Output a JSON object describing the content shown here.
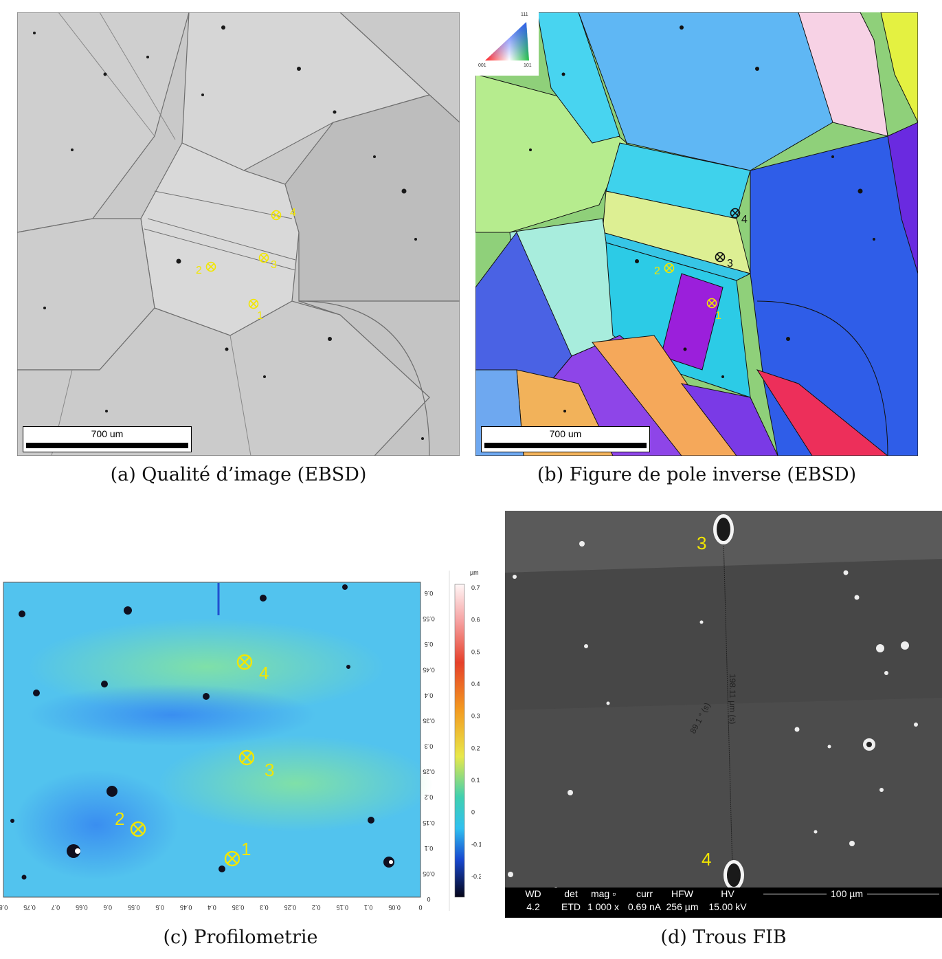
{
  "panels": {
    "a": {
      "caption": "(a) Qualité d’image (EBSD)",
      "scalebar": "700 um",
      "markers": [
        "1",
        "2",
        "3",
        "4"
      ]
    },
    "b": {
      "caption": "(b) Figure de pole inverse (EBSD)",
      "scalebar": "700 um",
      "legend_corners": {
        "top": "111",
        "left": "001",
        "right": "101"
      },
      "markers": [
        "1",
        "2",
        "3",
        "4"
      ]
    },
    "c": {
      "caption": "(c) Profilometrie",
      "colorbar_unit": "µm",
      "colorbar_ticks": [
        "0.7",
        "0.6",
        "0.5",
        "0.4",
        "0.3",
        "0.2",
        "0.1",
        "0",
        "-0.1",
        "-0.2"
      ],
      "right_axis_ticks": [
        "0.6",
        "0.55",
        "0.5",
        "0.45",
        "0.4",
        "0.35",
        "0.3",
        "0.25",
        "0.2",
        "0.15",
        "0.1",
        "0.05",
        "0"
      ],
      "bottom_axis_ticks": [
        "0.8",
        "0.75",
        "0.7",
        "0.65",
        "0.6",
        "0.55",
        "0.5",
        "0.45",
        "0.4",
        "0.35",
        "0.3",
        "0.25",
        "0.2",
        "0.15",
        "0.1",
        "0.05",
        "0"
      ],
      "markers": [
        "1",
        "2",
        "3",
        "4"
      ]
    },
    "d": {
      "caption": "(d) Trous FIB",
      "markers": [
        "3",
        "4"
      ],
      "measure_length": "198.11 µm (s)",
      "measure_angle": "89.1 ° (s)",
      "footer": {
        "wd_label": "WD",
        "wd_value": "4.2 mm",
        "det_label": "det",
        "det_value": "ETD",
        "mag_label": "mag ▫",
        "mag_value": "1 000 x",
        "curr_label": "curr",
        "curr_value": "0.69 nA",
        "hfw_label": "HFW",
        "hfw_value": "256 µm",
        "hv_label": "HV",
        "hv_value": "15.00 kV",
        "scale_label": "100 µm"
      }
    }
  },
  "colors": {
    "marker_yellow": "#f2e600",
    "sem_background": "#4e4e4e"
  }
}
